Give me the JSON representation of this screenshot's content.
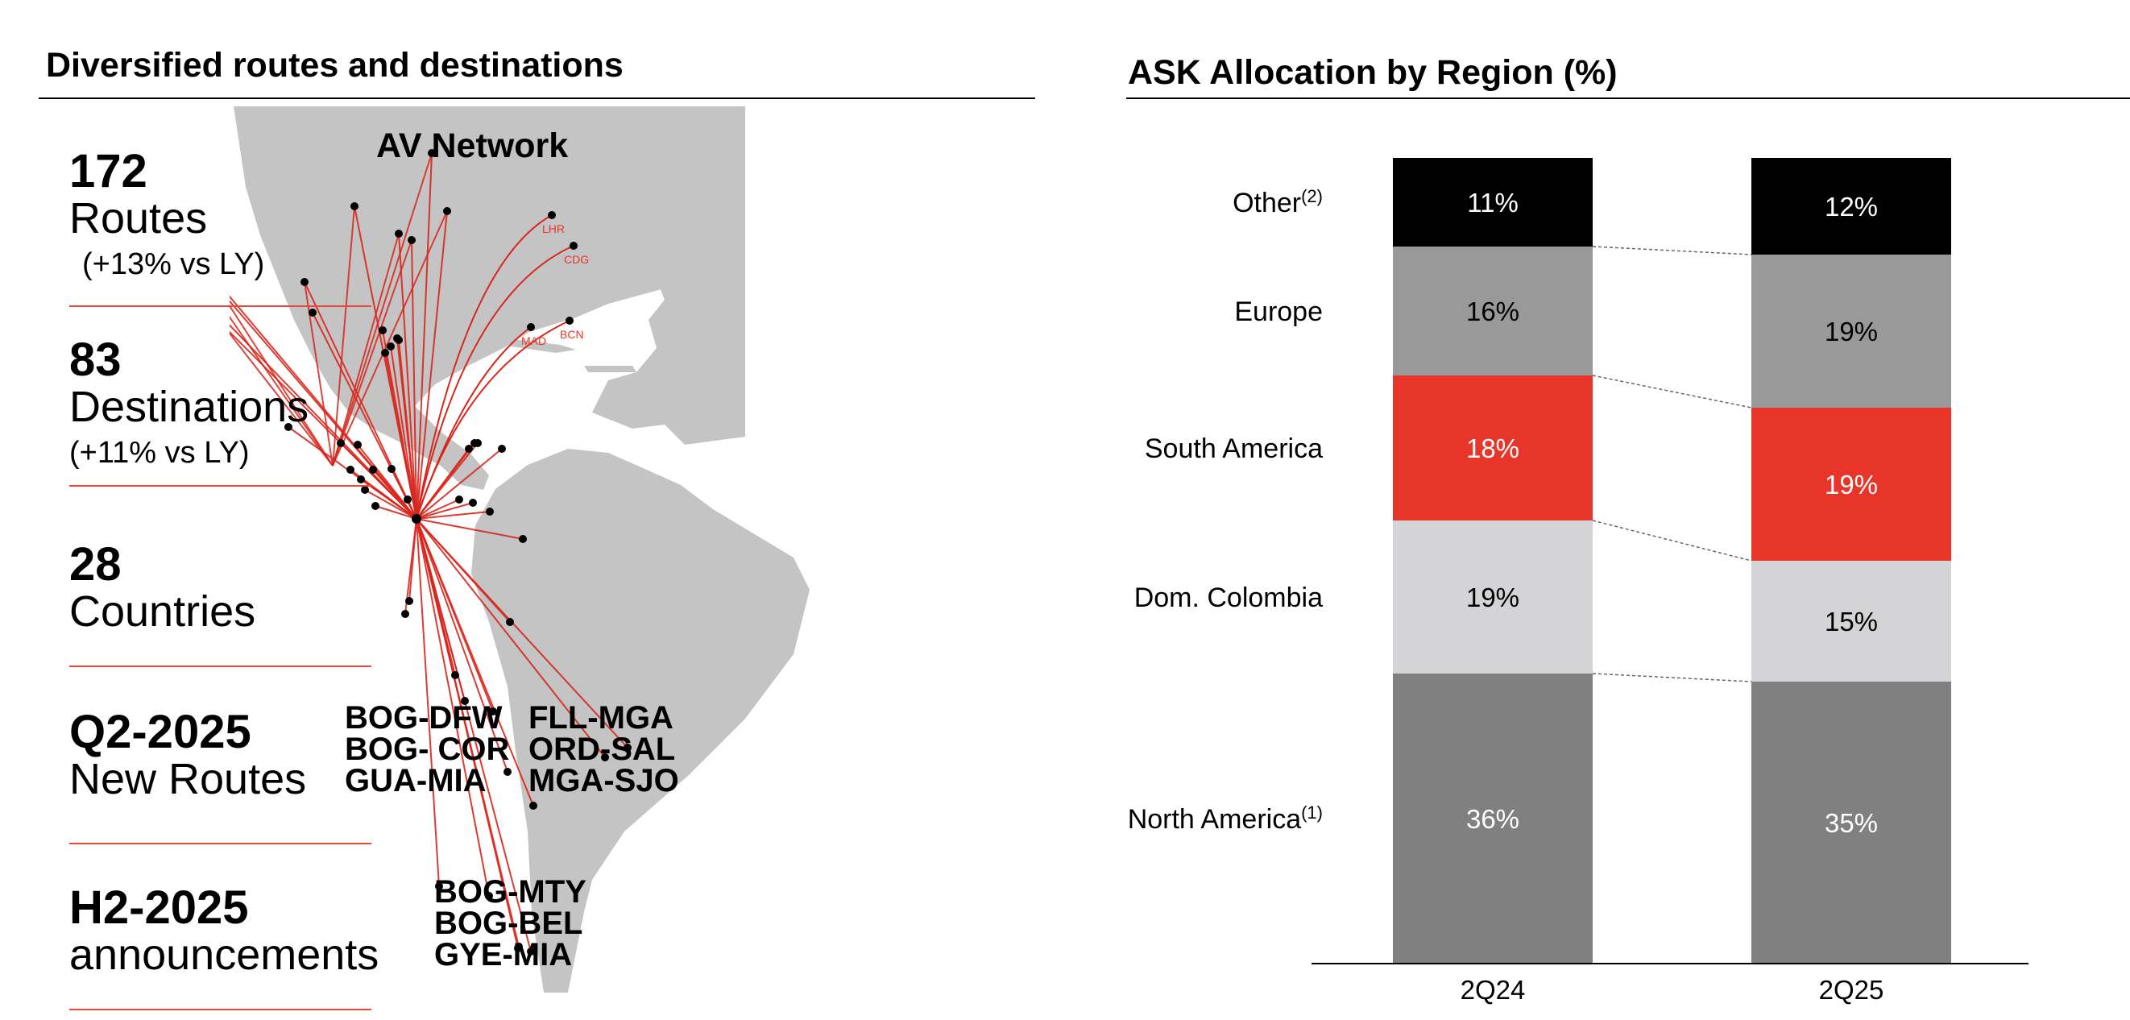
{
  "left": {
    "title": "Diversified routes and destinations",
    "map_title": "AV Network",
    "stats": [
      {
        "number": "172",
        "label": "Routes",
        "sub": "(+13% vs LY)"
      },
      {
        "number": "83",
        "label": "Destinations",
        "sub": "(+11% vs LY)"
      },
      {
        "number": "28",
        "label": "Countries",
        "sub": ""
      },
      {
        "number": "Q2-2025",
        "label": "New Routes",
        "sub": ""
      },
      {
        "number": "H2-2025",
        "label": "announcements",
        "sub": ""
      }
    ],
    "new_routes_col1": [
      "BOG-DFW",
      "BOG- COR",
      "GUA-MIA"
    ],
    "new_routes_col2": [
      "FLL-MGA",
      "ORD-SAL",
      "MGA-SJO"
    ],
    "announcements": [
      "BOG-MTY",
      "BOG-BEL",
      "GYE-MIA"
    ],
    "europe_codes": [
      "LHR",
      "CDG",
      "MAD",
      "BCN"
    ]
  },
  "right": {
    "title": "ASK Allocation by Region (%)"
  },
  "chart_data": {
    "type": "bar",
    "stacked": true,
    "title": "ASK Allocation by Region (%)",
    "categories": [
      "2Q24",
      "2Q25"
    ],
    "series": [
      {
        "name": "North America",
        "superscript": "(1)",
        "values": [
          36,
          35
        ],
        "labels": [
          "36%",
          "35%"
        ],
        "color": "#808080",
        "text_color": "#ffffff"
      },
      {
        "name": "Dom. Colombia",
        "superscript": "",
        "values": [
          19,
          15
        ],
        "labels": [
          "19%",
          "15%"
        ],
        "color": "#d4d4d6",
        "text_color": "#000000"
      },
      {
        "name": "South America",
        "superscript": "",
        "values": [
          18,
          19
        ],
        "labels": [
          "18%",
          "19%"
        ],
        "color": "#e8352a",
        "text_color": "#ffffff"
      },
      {
        "name": "Europe",
        "superscript": "",
        "values": [
          16,
          19
        ],
        "labels": [
          "16%",
          "19%"
        ],
        "color": "#999999",
        "text_color": "#000000"
      },
      {
        "name": "Other",
        "superscript": "(2)",
        "values": [
          11,
          12
        ],
        "labels": [
          "11%",
          "12%"
        ],
        "color": "#000000",
        "text_color": "#ffffff"
      }
    ],
    "connector_lines": true,
    "legend": "left-inline"
  }
}
